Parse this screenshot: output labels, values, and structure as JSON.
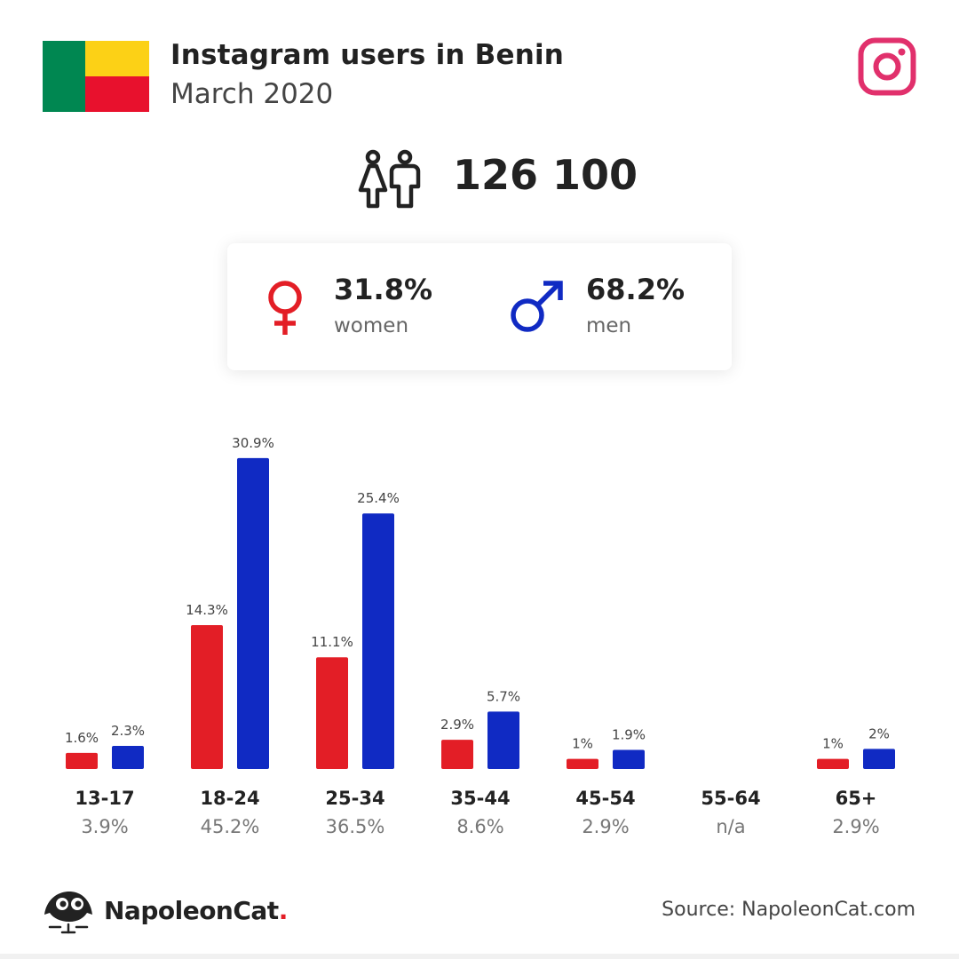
{
  "header": {
    "title": "Instagram users in Benin",
    "subtitle": "March 2020"
  },
  "colors": {
    "women": "#e31e26",
    "men": "#102ac3",
    "instagram": "#e1306c",
    "flag_green": "#008751",
    "flag_yellow": "#fcd116",
    "flag_red": "#e8112d"
  },
  "icons": {
    "flag": "benin-flag-icon",
    "instagram": "instagram-logo-icon",
    "users": "users-icon",
    "female": "female-symbol-icon",
    "male": "male-symbol-icon",
    "brand": "napoleoncat-logo-icon"
  },
  "total_users": "126 100",
  "gender": {
    "women_pct": "31.8%",
    "women_label": "women",
    "men_pct": "68.2%",
    "men_label": "men"
  },
  "chart_data": {
    "type": "bar",
    "categories": [
      "13-17",
      "18-24",
      "25-34",
      "35-44",
      "45-54",
      "55-64",
      "65+"
    ],
    "series": [
      {
        "key": "women",
        "values": [
          1.6,
          14.3,
          11.1,
          2.9,
          1,
          null,
          1
        ],
        "labels": [
          "1.6%",
          "14.3%",
          "11.1%",
          "2.9%",
          "1%",
          "",
          "1%"
        ]
      },
      {
        "key": "men",
        "values": [
          2.3,
          30.9,
          25.4,
          5.7,
          1.9,
          null,
          2
        ],
        "labels": [
          "2.3%",
          "30.9%",
          "25.4%",
          "5.7%",
          "1.9%",
          "",
          "2%"
        ]
      }
    ],
    "category_totals": [
      "3.9%",
      "45.2%",
      "36.5%",
      "8.6%",
      "2.9%",
      "n/a",
      "2.9%"
    ],
    "ylim": [
      0,
      31
    ],
    "grid": false
  },
  "footer": {
    "brand": "NapoleonCat",
    "brand_dot": ".",
    "source": "Source: NapoleonCat.com"
  }
}
